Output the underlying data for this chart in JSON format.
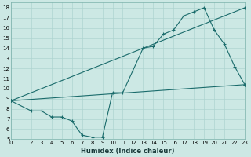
{
  "title": "",
  "xlabel": "Humidex (Indice chaleur)",
  "bg_color": "#cce8e4",
  "line_color": "#1a6b6b",
  "xlim": [
    0,
    23
  ],
  "ylim": [
    5,
    18.5
  ],
  "xtick_vals": [
    0,
    2,
    3,
    4,
    5,
    6,
    7,
    8,
    9,
    10,
    11,
    12,
    13,
    14,
    15,
    16,
    17,
    18,
    19,
    20,
    21,
    22,
    23
  ],
  "xtick_labels": [
    "0",
    "2",
    "3",
    "4",
    "5",
    "6",
    "7",
    "8",
    "9",
    "10",
    "11",
    "12",
    "13",
    "14",
    "15",
    "16",
    "17",
    "18",
    "19",
    "20",
    "21",
    "22",
    "23"
  ],
  "ytick_vals": [
    5,
    6,
    7,
    8,
    9,
    10,
    11,
    12,
    13,
    14,
    15,
    16,
    17,
    18
  ],
  "ytick_labels": [
    "5",
    "6",
    "7",
    "8",
    "9",
    "10",
    "11",
    "12",
    "13",
    "14",
    "15",
    "16",
    "17",
    "18"
  ],
  "line1_x": [
    0,
    2,
    3,
    4,
    5,
    6,
    7,
    8,
    9,
    10,
    11,
    12,
    13,
    14,
    15,
    16,
    17,
    18,
    19,
    20,
    21,
    22,
    23
  ],
  "line1_y": [
    8.8,
    7.8,
    7.8,
    7.2,
    7.2,
    6.8,
    5.4,
    5.2,
    5.2,
    9.6,
    9.6,
    11.8,
    14.0,
    14.2,
    15.4,
    15.8,
    17.2,
    17.6,
    18.0,
    15.8,
    14.4,
    12.2,
    10.4
  ],
  "line2_x": [
    0,
    23
  ],
  "line2_y": [
    8.8,
    10.4
  ],
  "line3_x": [
    0,
    23
  ],
  "line3_y": [
    8.8,
    18.0
  ],
  "grid_color": "#aed4d0",
  "xlabel_fontsize": 6.0,
  "tick_fontsize": 5.0
}
